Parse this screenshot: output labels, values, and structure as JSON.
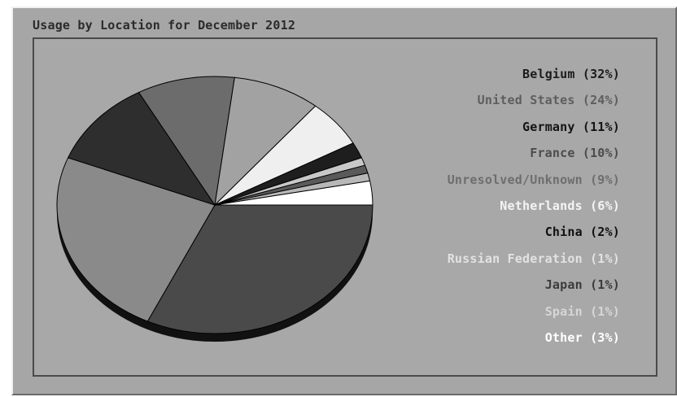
{
  "chart_data": {
    "type": "pie",
    "title": "Usage by Location for December 2012",
    "slices": [
      {
        "label": "Belgium (32%)",
        "value": 32,
        "color": "#4a4a4a",
        "legend_color": "#1c1c1c"
      },
      {
        "label": "United States (24%)",
        "value": 24,
        "color": "#8a8a8a",
        "legend_color": "#5e5e5e"
      },
      {
        "label": "Germany (11%)",
        "value": 11,
        "color": "#2e2e2e",
        "legend_color": "#141414"
      },
      {
        "label": "France (10%)",
        "value": 10,
        "color": "#6c6c6c",
        "legend_color": "#4c4c4c"
      },
      {
        "label": "Unresolved/Unknown (9%)",
        "value": 9,
        "color": "#a2a2a2",
        "legend_color": "#6e6e6e"
      },
      {
        "label": "Netherlands (6%)",
        "value": 6,
        "color": "#efefef",
        "legend_color": "#f4f4f4"
      },
      {
        "label": "China (2%)",
        "value": 2,
        "color": "#1e1e1e",
        "legend_color": "#111111"
      },
      {
        "label": "Russian Federation (1%)",
        "value": 1,
        "color": "#c8c8c8",
        "legend_color": "#e2e2e2"
      },
      {
        "label": "Japan (1%)",
        "value": 1,
        "color": "#5a5a5a",
        "legend_color": "#3c3c3c"
      },
      {
        "label": "Spain (1%)",
        "value": 1,
        "color": "#b8b8b8",
        "legend_color": "#d6d6d6"
      },
      {
        "label": "Other (3%)",
        "value": 3,
        "color": "#ffffff",
        "legend_color": "#ffffff"
      }
    ],
    "legend_placement": "right"
  }
}
